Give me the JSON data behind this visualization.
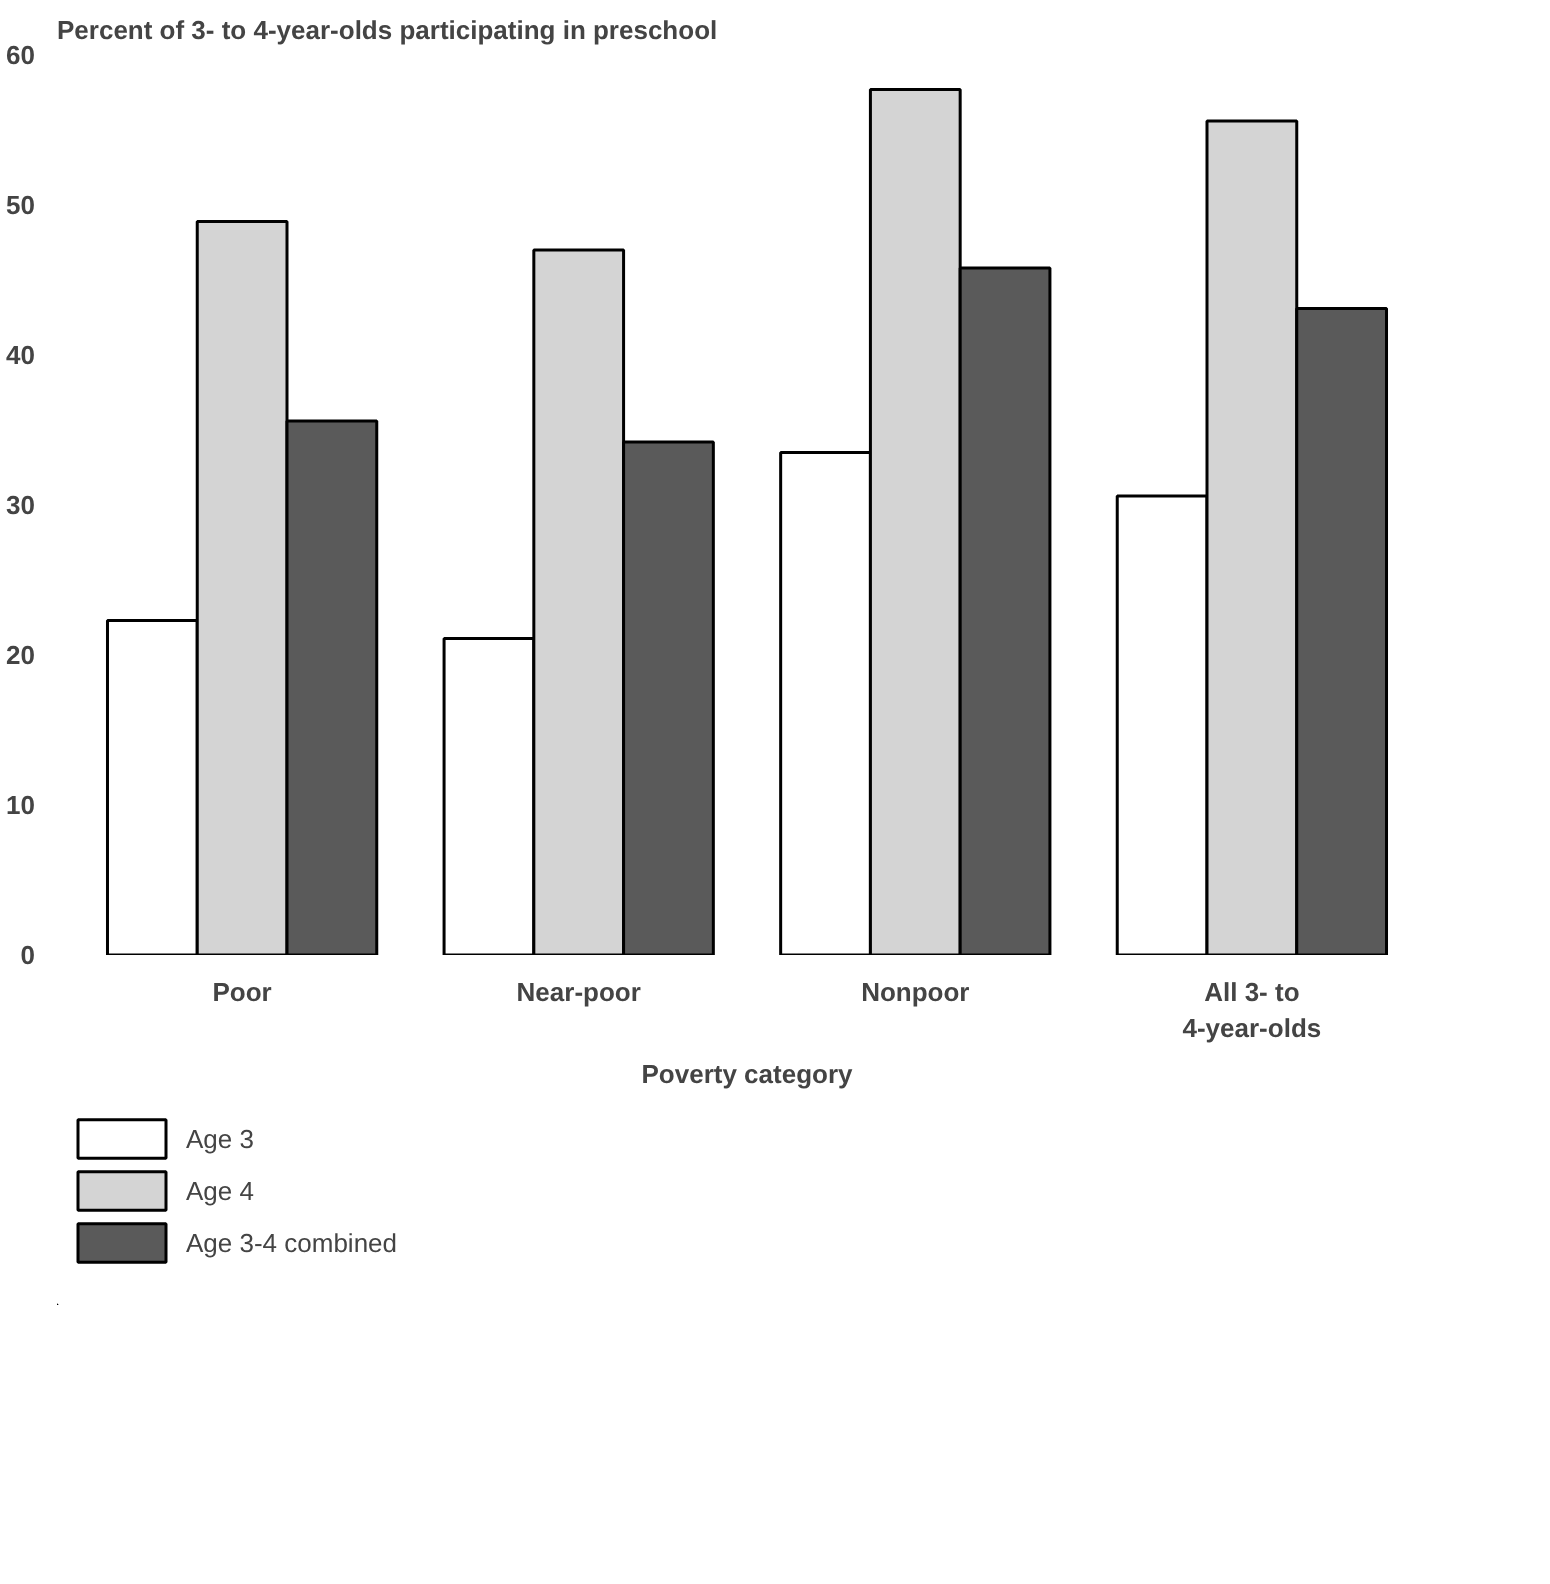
{
  "chart_data": {
    "type": "bar",
    "title": "Percent of 3- to 4-year-olds participating in preschool",
    "xlabel": "Poverty category",
    "categories": [
      "Poor",
      "Near-poor",
      "Nonpoor",
      "All 3- to\n4-year-olds"
    ],
    "series": [
      {
        "name": "Age 3",
        "color": "#ffffff",
        "values": [
          22.3,
          21.1,
          33.5,
          30.6
        ]
      },
      {
        "name": "Age 4",
        "color": "#d4d4d4",
        "values": [
          48.9,
          47.0,
          57.7,
          55.6
        ]
      },
      {
        "name": "Age 3-4 combined",
        "color": "#5a5a5a",
        "values": [
          35.6,
          34.2,
          45.8,
          43.1
        ]
      }
    ],
    "ylim": [
      0,
      60
    ],
    "yticks": [
      0,
      10,
      20,
      30,
      40,
      50,
      60
    ],
    "grid": false,
    "legend": "bottom left"
  }
}
